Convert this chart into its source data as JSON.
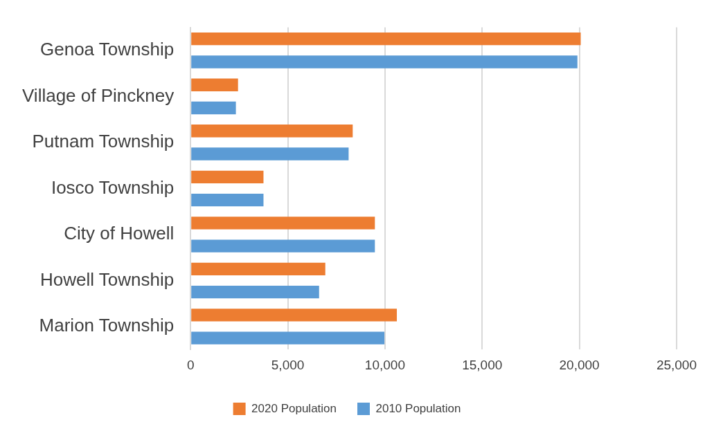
{
  "chart_data": {
    "type": "bar",
    "orientation": "horizontal",
    "categories": [
      "Genoa Township",
      "Village of Pinckney",
      "Putnam Township",
      "Iosco Township",
      "City of Howell",
      "Howell Township",
      "Marion Township"
    ],
    "series": [
      {
        "name": "2020 Population",
        "color": "#ed7d31",
        "values": [
          20070,
          2440,
          8340,
          3750,
          9480,
          6930,
          10610
        ]
      },
      {
        "name": "2010 Population",
        "color": "#5b9bd5",
        "values": [
          19900,
          2330,
          8130,
          3750,
          9480,
          6610,
          9970
        ]
      }
    ],
    "xlim": [
      0,
      25000
    ],
    "xticks": [
      0,
      {
        "value": 5000,
        "label": "5,000"
      },
      {
        "value": 10000,
        "label": "10,000"
      },
      {
        "value": 15000,
        "label": "15,000"
      },
      {
        "value": 20000,
        "label": "20,000"
      },
      {
        "value": 25000,
        "label": "25,000"
      }
    ],
    "grid": "x",
    "legend": "bottom"
  }
}
